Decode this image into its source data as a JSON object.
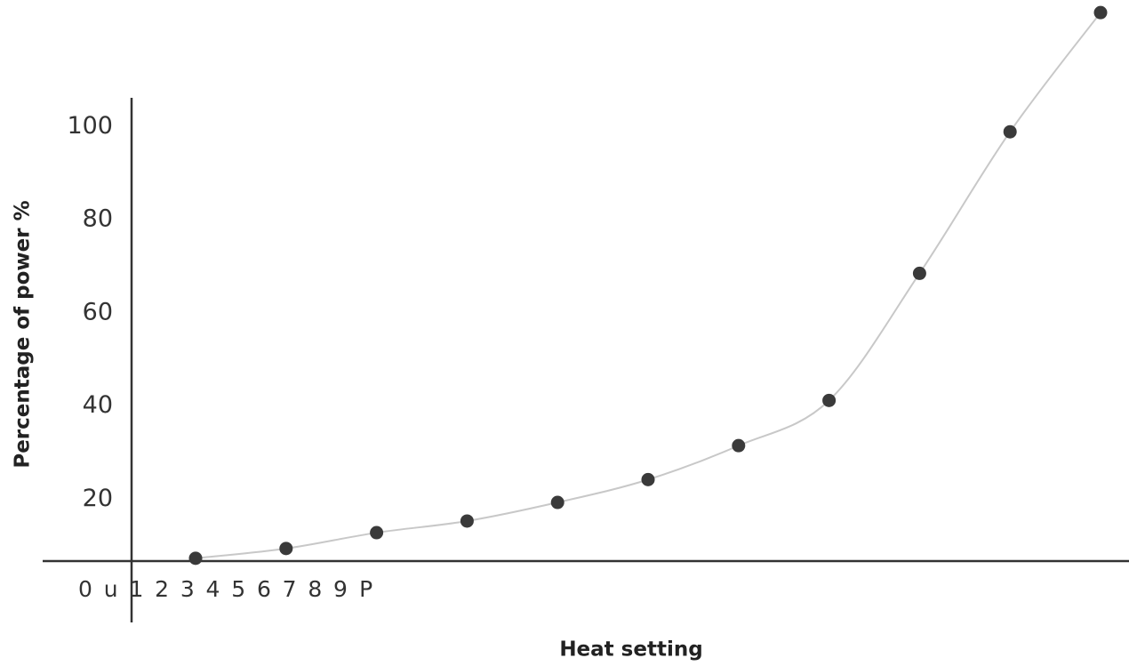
{
  "chart_data": {
    "type": "line",
    "x_label": "Heat setting",
    "y_label": "Percentage of power %",
    "categories": [
      "0",
      "u",
      "1",
      "2",
      "3",
      "4",
      "5",
      "6",
      "7",
      "8",
      "9",
      "P"
    ],
    "values": [
      null,
      7.3,
      9.4,
      12.8,
      15.3,
      19.3,
      24.2,
      31.5,
      41.2,
      68.5,
      98.9,
      124.5
    ],
    "color": "#3a3a3a",
    "line_color": "#c8c8c8",
    "ylim": [
      6.7,
      106.2
    ],
    "yticks": [
      20,
      40,
      60,
      80,
      100
    ]
  }
}
